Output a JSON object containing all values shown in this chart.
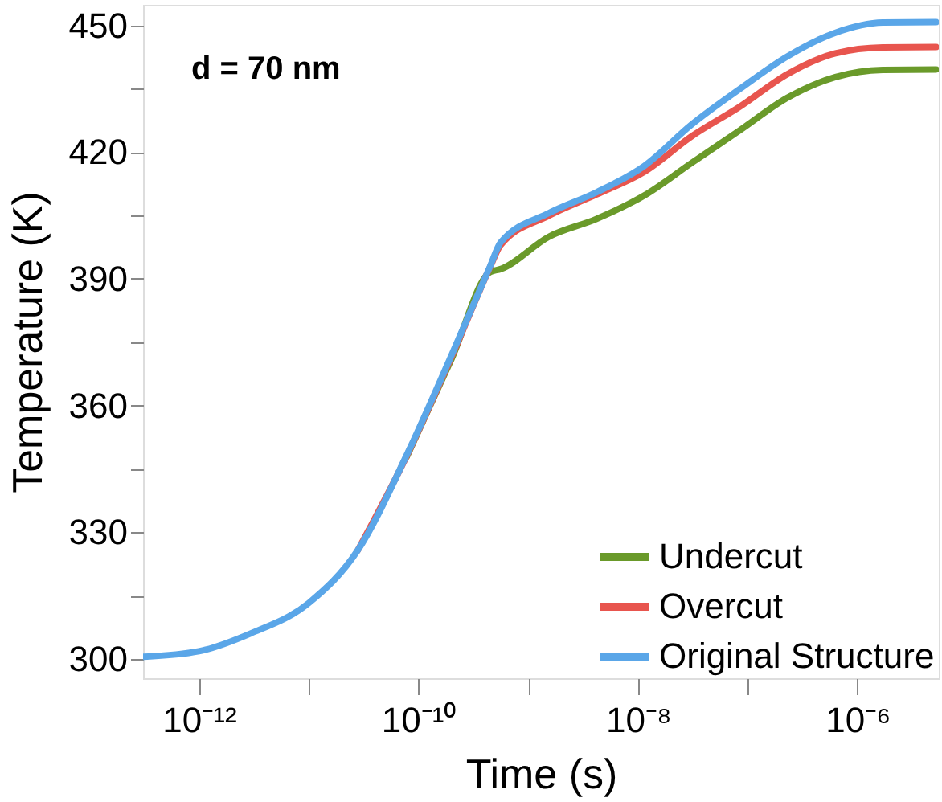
{
  "chart_data": {
    "type": "line",
    "xlabel": "Time (s)",
    "ylabel": "Temperature (K)",
    "annotations": [
      "d = 70 nm"
    ],
    "x": [
      3.16e-13,
      1e-12,
      2.95e-12,
      1e-11,
      2.8e-11,
      7.8e-11,
      2e-10,
      4.5e-10,
      5.6e-10,
      1.55e-09,
      4.2e-09,
      1.15e-08,
      3.1e-08,
      8.5e-08,
      2.3e-07,
      6.3e-07,
      1.7e-06,
      5.2e-06
    ],
    "series": [
      {
        "name": "Undercut",
        "color": "#6a9a2a",
        "values": [
          null,
          null,
          null,
          null,
          null,
          347.8,
          371,
          391.6,
          392.3,
          400,
          404.2,
          409.8,
          417.5,
          425.2,
          432.9,
          437.8,
          439.5,
          439.6
        ]
      },
      {
        "name": "Overcut",
        "color": "#e8554e",
        "values": [
          null,
          null,
          null,
          null,
          325.7,
          348,
          371.5,
          392.8,
          398,
          405,
          410,
          415.4,
          423.8,
          430.8,
          438.5,
          443.4,
          444.8,
          444.9
        ]
      },
      {
        "name": "Original Structure",
        "color": "#5aa6e8",
        "values": [
          300.5,
          301.8,
          306,
          313.2,
          325.7,
          348.2,
          371.9,
          393,
          398.6,
          405.6,
          410.5,
          416.8,
          426.6,
          435,
          442.7,
          448.3,
          450.7,
          450.8
        ]
      }
    ],
    "log": "x",
    "xlim": [
      3.1e-13,
      5.5e-06
    ],
    "ylim": [
      295.4,
      454.9
    ],
    "xticks": [
      {
        "value": 1e-12,
        "label": "10⁻¹²"
      },
      {
        "value": 1e-11,
        "label": null
      },
      {
        "value": 1e-10,
        "label": "10⁻¹⁰"
      },
      {
        "value": 1e-09,
        "label": null
      },
      {
        "value": 1e-08,
        "label": "10⁻⁸"
      },
      {
        "value": 1e-07,
        "label": null
      },
      {
        "value": 1e-06,
        "label": "10⁻⁶"
      }
    ],
    "yticks": [
      300,
      {
        "value": 315,
        "label": null
      },
      330,
      {
        "value": 345,
        "label": null
      },
      360,
      {
        "value": 375,
        "label": null
      },
      390,
      {
        "value": 405,
        "label": null
      },
      420,
      {
        "value": 435,
        "label": null
      },
      450
    ],
    "grid": false,
    "legend": "bottom right",
    "marker": "none",
    "line_style": "solid"
  }
}
